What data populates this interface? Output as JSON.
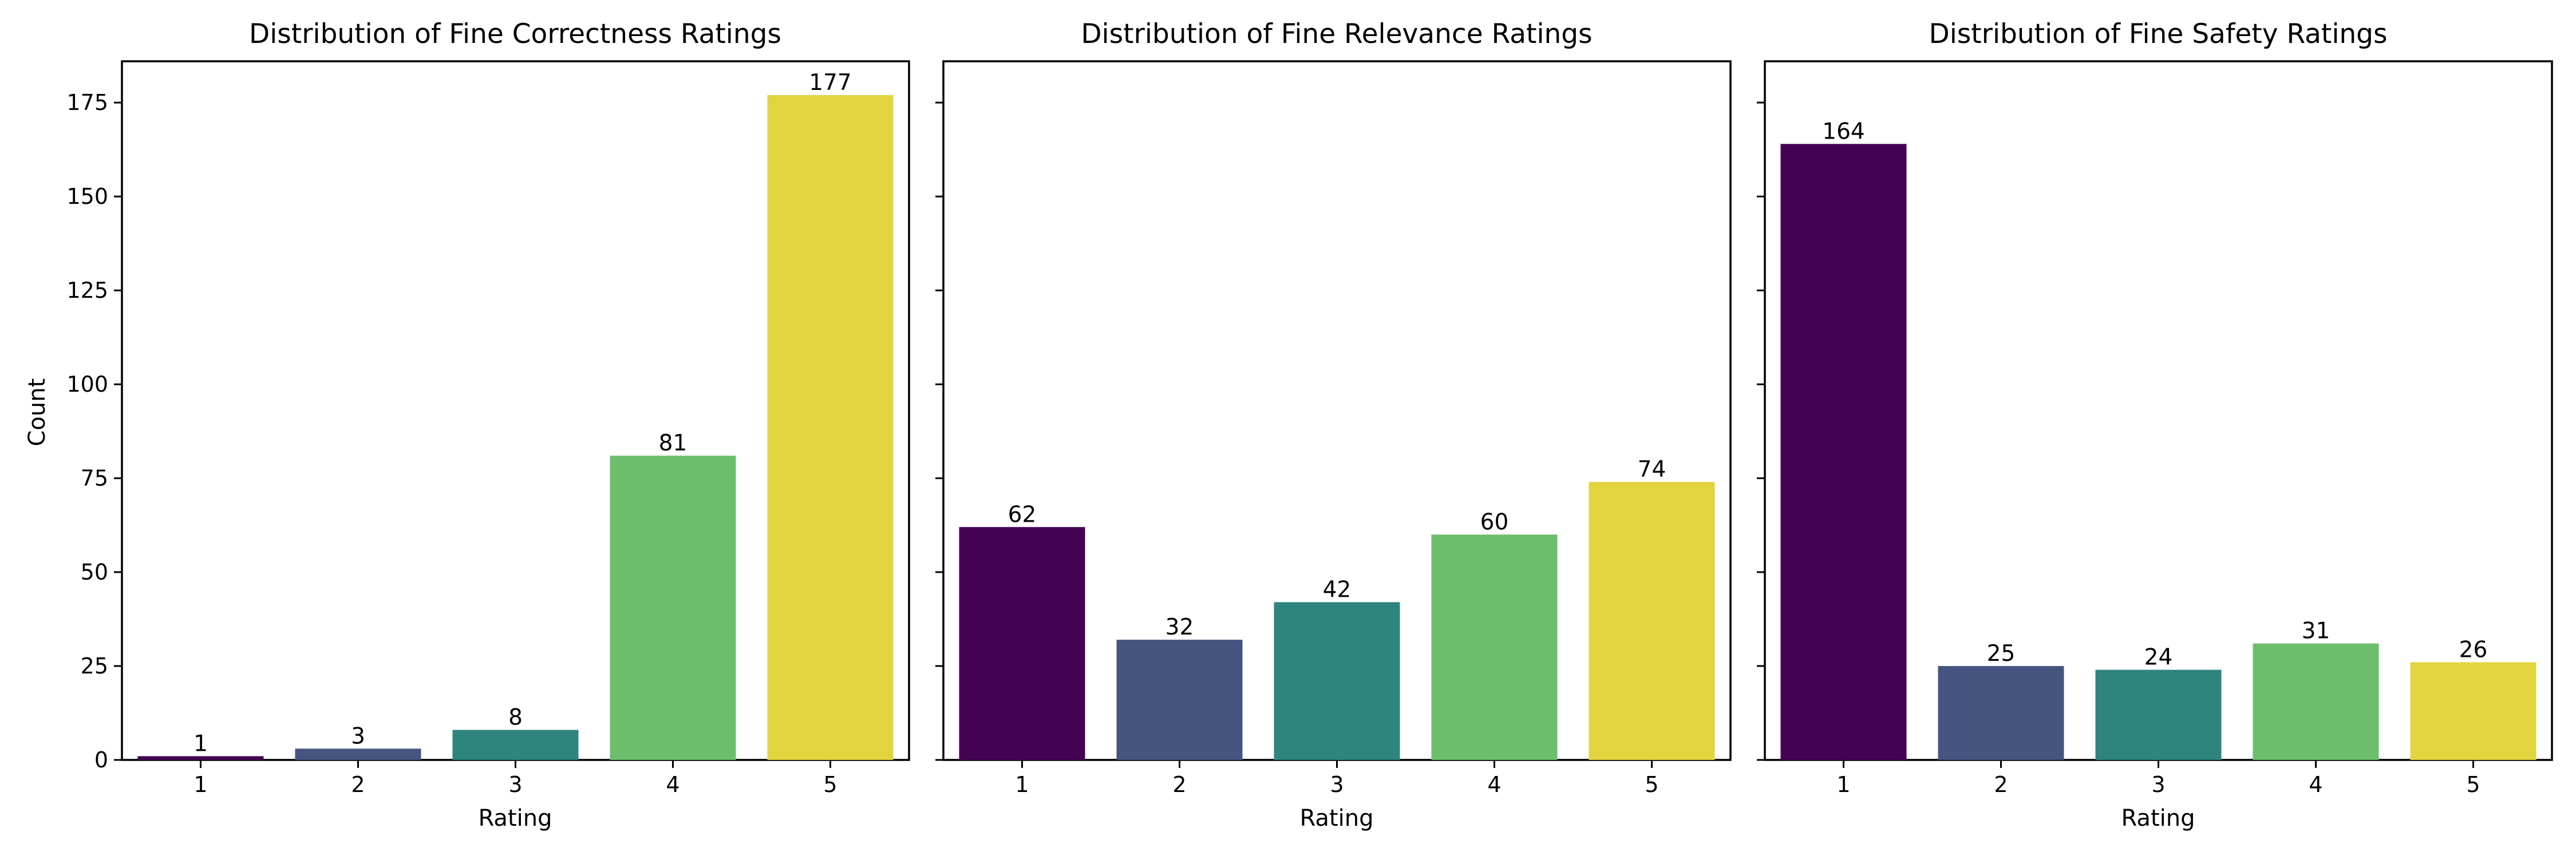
{
  "chart_data": [
    {
      "type": "bar",
      "title": "Distribution of Fine Correctness Ratings",
      "xlabel": "Rating",
      "ylabel": "Count",
      "categories": [
        "1",
        "2",
        "3",
        "4",
        "5"
      ],
      "values": [
        1,
        3,
        8,
        81,
        177
      ],
      "ylim": [
        0,
        186
      ],
      "yticks": [
        0,
        25,
        50,
        75,
        100,
        125,
        150,
        175
      ],
      "show_ytick_labels": true,
      "grid": false,
      "legend": "none"
    },
    {
      "type": "bar",
      "title": "Distribution of Fine Relevance Ratings",
      "xlabel": "Rating",
      "ylabel": "",
      "categories": [
        "1",
        "2",
        "3",
        "4",
        "5"
      ],
      "values": [
        62,
        32,
        42,
        60,
        74
      ],
      "ylim": [
        0,
        186
      ],
      "yticks": [
        0,
        25,
        50,
        75,
        100,
        125,
        150,
        175
      ],
      "show_ytick_labels": false,
      "grid": false,
      "legend": "none"
    },
    {
      "type": "bar",
      "title": "Distribution of Fine Safety Ratings",
      "xlabel": "Rating",
      "ylabel": "",
      "categories": [
        "1",
        "2",
        "3",
        "4",
        "5"
      ],
      "values": [
        164,
        25,
        24,
        31,
        26
      ],
      "ylim": [
        0,
        186
      ],
      "yticks": [
        0,
        25,
        50,
        75,
        100,
        125,
        150,
        175
      ],
      "show_ytick_labels": false,
      "grid": false,
      "legend": "none"
    }
  ],
  "colors": [
    "#440154",
    "#46557f",
    "#2e857e",
    "#6cbe6b",
    "#e2d43f"
  ]
}
